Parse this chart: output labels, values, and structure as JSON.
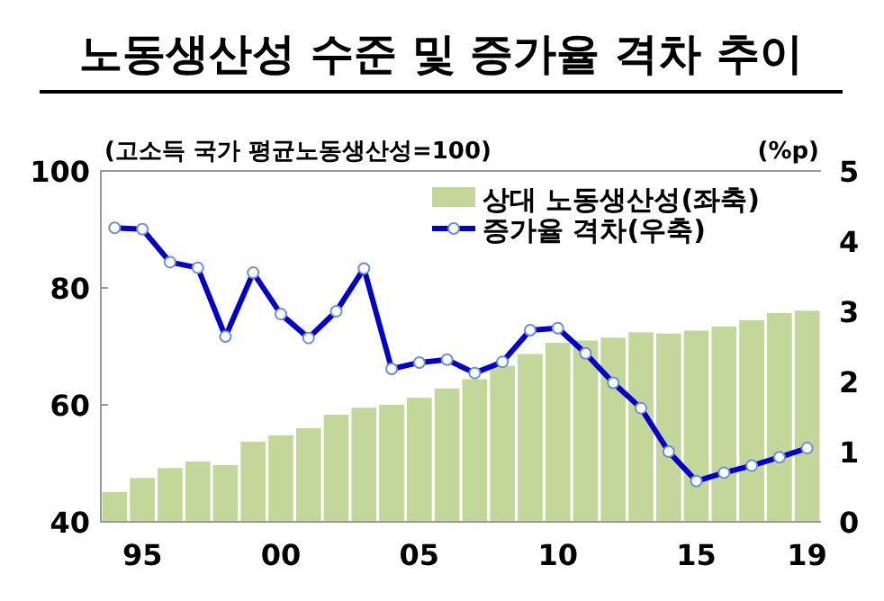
{
  "chart_data": {
    "type": "bar",
    "title": "노동생산성 수준 및 증가율 격차 추이",
    "subtitle": "(고소득 국가 평균노동생산성=100)",
    "y2label": "(%p)",
    "categories": [
      null,
      "95",
      null,
      null,
      null,
      null,
      "00",
      null,
      null,
      null,
      null,
      "05",
      null,
      null,
      null,
      null,
      "10",
      null,
      null,
      null,
      null,
      "15",
      null,
      null,
      null,
      "19"
    ],
    "series": [
      {
        "name": "상대 노동생산성(좌축)",
        "color": "#c4d79b",
        "values": [
          45.1,
          47.5,
          49.2,
          50.3,
          49.7,
          53.7,
          54.8,
          56.0,
          58.3,
          59.5,
          60.0,
          61.2,
          62.8,
          64.4,
          66.7,
          68.7,
          70.6,
          71.0,
          71.5,
          72.4,
          72.2,
          72.7,
          73.4,
          74.5,
          75.7,
          76.1
        ]
      },
      {
        "name": "증가율 격차(우축)",
        "type": "line",
        "axis": "y2",
        "color": "#0000cc",
        "marker": "circle",
        "values": [
          4.19,
          4.17,
          3.7,
          3.62,
          2.64,
          3.55,
          2.96,
          2.62,
          3.0,
          3.61,
          2.18,
          2.27,
          2.31,
          2.12,
          2.28,
          2.73,
          2.76,
          2.4,
          1.98,
          1.62,
          1.0,
          0.58,
          0.7,
          0.8,
          0.92,
          1.05
        ]
      }
    ],
    "ylim": [
      40,
      100
    ],
    "yticks": [
      40,
      60,
      80,
      100
    ],
    "y2lim": [
      0,
      5
    ],
    "y2ticks": [
      0,
      1,
      2,
      3,
      4,
      5
    ],
    "legend": "top right",
    "grid": false
  }
}
